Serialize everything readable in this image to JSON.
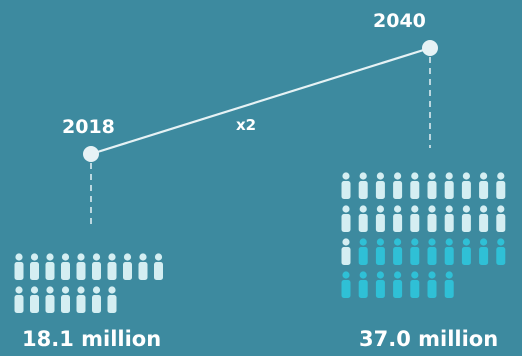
{
  "chart_data": {
    "type": "pictograph",
    "title": "",
    "points": [
      {
        "year": "2018",
        "value": 18.1,
        "label": "18.1 million",
        "light_icons": 17,
        "dark_icons": 0
      },
      {
        "year": "2040",
        "value": 37.0,
        "label": "37.0 million",
        "light_icons": 21,
        "dark_icons": 16
      }
    ],
    "multiplier_label": "x2",
    "colors": {
      "background": "#3d8a9f",
      "icon_light": "#d4eef2",
      "icon_dark": "#2fc0d6",
      "line": "#e6f2f5",
      "text": "#ffffff"
    }
  }
}
